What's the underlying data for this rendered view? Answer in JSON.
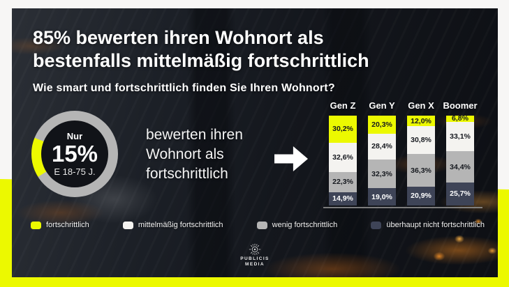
{
  "page": {
    "headline_line1": "85% bewerten ihren Wohnort als",
    "headline_line2": "bestenfalls mittelmäßig fortschrittlich",
    "subtitle": "Wie smart und fortschrittlich finden Sie Ihren Wohnort?"
  },
  "donut": {
    "prefix": "Nur",
    "value": "15%",
    "subline": "E 18-75 J.",
    "percent": 15,
    "start_angle_deg": 238,
    "highlight_color": "#ecf900",
    "ring_color": "#b5b5b5",
    "center_color": "#111318"
  },
  "callout": {
    "line1": "bewerten ihren",
    "line2": "Wohnort als",
    "line3": "fortschrittlich"
  },
  "chart_data": [
    {
      "type": "pie",
      "subtype": "donut",
      "slices": [
        {
          "name": "fortschrittlich",
          "value": 15,
          "color": "#ecf900"
        },
        {
          "name": "rest",
          "value": 85,
          "color": "#b5b5b5"
        }
      ],
      "center_label": "Nur 15% E 18-75 J."
    },
    {
      "type": "bar",
      "subtype": "stacked-column-100",
      "categories": [
        "Gen Z",
        "Gen Y",
        "Gen X",
        "Boomer"
      ],
      "series": [
        {
          "name": "fortschrittlich",
          "color": "#ecf900",
          "text_color": "#15181e",
          "values": [
            30.2,
            20.3,
            12.0,
            6.8
          ],
          "labels": [
            "30,2%",
            "20,3%",
            "12,0%",
            "6,8%"
          ]
        },
        {
          "name": "mittelmäßig fortschrittlich",
          "color": "#f4f3f0",
          "text_color": "#15181e",
          "values": [
            32.6,
            28.4,
            30.8,
            33.1
          ],
          "labels": [
            "32,6%",
            "28,4%",
            "30,8%",
            "33,1%"
          ]
        },
        {
          "name": "wenig fortschrittlich",
          "color": "#b5b5b5",
          "text_color": "#15181e",
          "values": [
            22.3,
            32.3,
            36.3,
            34.4
          ],
          "labels": [
            "22,3%",
            "32,3%",
            "36,3%",
            "34,4%"
          ]
        },
        {
          "name": "überhaupt nicht fortschrittlich",
          "color": "#3e4457",
          "text_color": "#ffffff",
          "values": [
            14.9,
            19.0,
            20.9,
            25.7
          ],
          "labels": [
            "14,9%",
            "19,0%",
            "20,9%",
            "25,7%"
          ]
        }
      ],
      "unit": "%",
      "ylim": [
        0,
        100
      ],
      "legend_position": "bottom"
    }
  ],
  "legend": {
    "items": [
      {
        "label": "fortschrittlich",
        "color": "#ecf900"
      },
      {
        "label": "mittelmäßig fortschrittlich",
        "color": "#f4f3f0"
      },
      {
        "label": "wenig fortschrittlich",
        "color": "#b5b5b5"
      },
      {
        "label": "überhaupt nicht fortschrittlich",
        "color": "#3e4457"
      }
    ]
  },
  "footer": {
    "brand_line1": "PUBLICIS",
    "brand_line2": "MEDIA"
  },
  "colors": {
    "brand_yellow": "#ecf900",
    "card_background": "#14171d",
    "text_white": "#ffffff"
  }
}
